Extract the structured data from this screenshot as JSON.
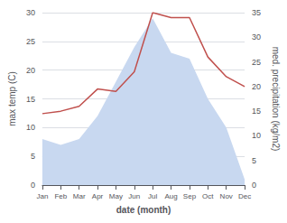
{
  "chart_data": {
    "type": "line",
    "xlabel": "date (month)",
    "ylabel": "max temp (C)",
    "y2label": "med. precipitation (kg/m2)",
    "categories": [
      "Jan",
      "Feb",
      "Mar",
      "Apr",
      "May",
      "Jun",
      "Jul",
      "Aug",
      "Sep",
      "Oct",
      "Nov",
      "Dec"
    ],
    "series": [
      {
        "type": "area",
        "color": "#c8d8f0",
        "values": [
          8,
          7,
          8,
          12,
          18,
          24,
          29,
          23,
          22,
          15,
          10,
          1
        ]
      },
      {
        "type": "line",
        "color": "#c0504d",
        "axis": "y2",
        "values": [
          14.5,
          15.0,
          16.0,
          19.5,
          19.0,
          23.0,
          35.0,
          34.0,
          34.0,
          26.0,
          22.0,
          20.0
        ]
      }
    ],
    "ylim": [
      0,
      30
    ],
    "yticks": [
      0,
      5,
      10,
      15,
      20,
      25,
      30
    ],
    "y2lim": [
      0,
      35
    ],
    "y2ticks": [
      0,
      5,
      10,
      15,
      20,
      25,
      30,
      35
    ],
    "grid": true
  }
}
